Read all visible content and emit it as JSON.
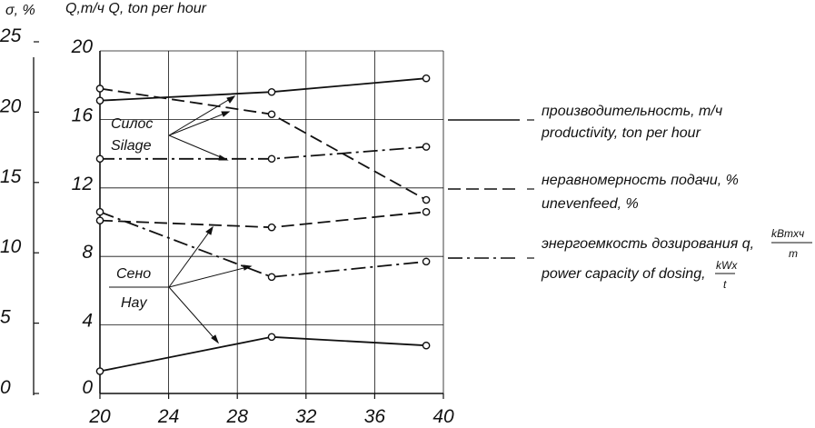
{
  "chart_data": {
    "type": "line",
    "header": {
      "left_axis_label": "σ, %",
      "right_axis_label": "Q,m/ч Q, ton per hour"
    },
    "x_ticks": [
      "20",
      "24",
      "28",
      "32",
      "36",
      "40"
    ],
    "xlim": [
      20,
      40
    ],
    "y_left_ticks": [
      "0",
      "5",
      "10",
      "15",
      "20",
      "25"
    ],
    "y_left_lim": [
      0,
      25
    ],
    "y_right_ticks": [
      "0",
      "4",
      "8",
      "12",
      "16",
      "20"
    ],
    "y_right_lim": [
      0,
      20
    ],
    "grid": true,
    "group_labels": {
      "silage_ru": "Силос",
      "silage_en": "Silage",
      "hay_ru": "Сено",
      "hay_en": "Hay"
    },
    "legend": [
      {
        "style": "solid",
        "ru": "производительность, m/ч",
        "en": "productivity, ton per hour"
      },
      {
        "style": "dashed",
        "ru": "неравномерность подачи, %",
        "en": "unevenfeed, %"
      },
      {
        "style": "dashdot",
        "ru": "энергоемкость дозирования q,",
        "en": "power capacity of dosing,",
        "ru_frac_num": "kBmxч",
        "ru_frac_den": "m",
        "en_frac_num": "kWx",
        "en_frac_den": "t"
      }
    ],
    "series": [
      {
        "group": "silage",
        "style": "solid",
        "x": [
          20,
          30,
          39
        ],
        "y_right": [
          17.1,
          17.6,
          18.4
        ]
      },
      {
        "group": "silage",
        "style": "dashed",
        "x": [
          20,
          30,
          39
        ],
        "y_right": [
          17.8,
          16.3,
          11.3
        ]
      },
      {
        "group": "silage",
        "style": "dashdot",
        "x": [
          20,
          30,
          39
        ],
        "y_right": [
          13.7,
          13.7,
          14.4
        ]
      },
      {
        "group": "hay",
        "style": "solid",
        "x": [
          20,
          30,
          39
        ],
        "y_right": [
          1.3,
          3.3,
          2.8
        ]
      },
      {
        "group": "hay",
        "style": "dashed",
        "x": [
          20,
          30,
          39
        ],
        "y_right": [
          10.1,
          9.7,
          10.6
        ]
      },
      {
        "group": "hay",
        "style": "dashdot",
        "x": [
          20,
          30,
          39
        ],
        "y_right": [
          10.6,
          6.8,
          7.7
        ]
      }
    ]
  }
}
